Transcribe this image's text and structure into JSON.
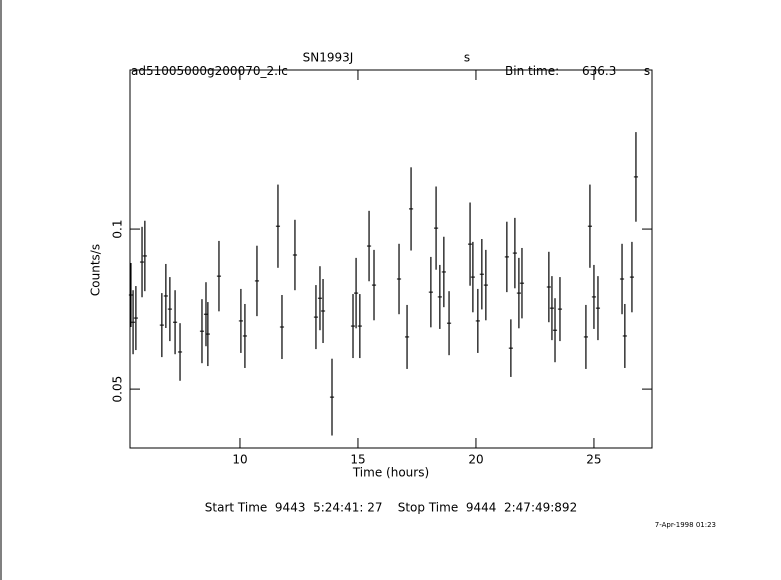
{
  "chart_data": {
    "type": "errorbar",
    "title": "SN1993J",
    "title_unit": "s",
    "file": "ad51005000g200070_2.lc",
    "bin_label": "Bin time:",
    "bin_value": "636.3",
    "bin_unit": "s",
    "xlabel": "Time (hours)",
    "ylabel": "Counts/s",
    "footer": "Start Time  9443  5:24:41: 27    Stop Time  9444  2:47:49:892",
    "stamp": "7-Apr-1998 01:23",
    "xlim": [
      5.34,
      27.46
    ],
    "ylim": [
      0.0316,
      0.1497
    ],
    "xticks": [
      10,
      15,
      20,
      25
    ],
    "yticks": [
      0.05,
      0.1
    ],
    "color": "#000000",
    "xerr": 0.088,
    "x": [
      5.38,
      5.47,
      5.59,
      5.85,
      5.97,
      6.69,
      6.86,
      7.03,
      7.25,
      7.46,
      8.39,
      8.56,
      8.64,
      9.11,
      10.04,
      10.21,
      10.72,
      11.61,
      11.78,
      12.33,
      13.22,
      13.39,
      13.52,
      13.9,
      14.79,
      14.92,
      15.08,
      15.47,
      15.68,
      16.74,
      17.08,
      17.25,
      18.09,
      18.31,
      18.47,
      18.64,
      18.86,
      19.75,
      19.87,
      20.08,
      20.25,
      20.42,
      21.31,
      21.48,
      21.65,
      21.82,
      21.95,
      23.09,
      23.22,
      23.35,
      23.56,
      24.66,
      24.83,
      25.0,
      25.17,
      26.19,
      26.31,
      26.61,
      26.78
    ],
    "values": [
      0.0794,
      0.0709,
      0.0722,
      0.0897,
      0.0916,
      0.07,
      0.0791,
      0.075,
      0.0709,
      0.0616,
      0.0681,
      0.0734,
      0.0672,
      0.0853,
      0.0713,
      0.0666,
      0.0838,
      0.1009,
      0.0694,
      0.0919,
      0.0725,
      0.0784,
      0.0744,
      0.0475,
      0.0697,
      0.08,
      0.0697,
      0.0947,
      0.0825,
      0.0844,
      0.0663,
      0.1063,
      0.0803,
      0.1003,
      0.0788,
      0.0866,
      0.0706,
      0.0953,
      0.085,
      0.0713,
      0.0859,
      0.0825,
      0.0913,
      0.0628,
      0.0925,
      0.08,
      0.0831,
      0.0819,
      0.0753,
      0.0684,
      0.075,
      0.0663,
      0.1009,
      0.0788,
      0.0753,
      0.0844,
      0.0666,
      0.085,
      0.1163
    ],
    "errors": [
      0.01,
      0.01,
      0.01,
      0.011,
      0.011,
      0.01,
      0.01,
      0.01,
      0.01,
      0.009,
      0.01,
      0.01,
      0.01,
      0.011,
      0.01,
      0.01,
      0.011,
      0.013,
      0.01,
      0.011,
      0.01,
      0.01,
      0.01,
      0.012,
      0.01,
      0.011,
      0.01,
      0.011,
      0.011,
      0.011,
      0.01,
      0.013,
      0.011,
      0.013,
      0.01,
      0.011,
      0.01,
      0.013,
      0.011,
      0.01,
      0.011,
      0.011,
      0.011,
      0.009,
      0.011,
      0.011,
      0.011,
      0.011,
      0.01,
      0.01,
      0.01,
      0.01,
      0.013,
      0.01,
      0.01,
      0.011,
      0.01,
      0.011,
      0.014
    ]
  }
}
